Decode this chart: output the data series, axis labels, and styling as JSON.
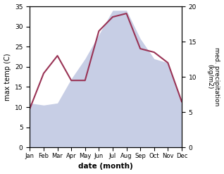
{
  "months": [
    "Jan",
    "Feb",
    "Mar",
    "Apr",
    "May",
    "Jun",
    "Jul",
    "Aug",
    "Sep",
    "Oct",
    "Nov",
    "Dec"
  ],
  "max_temp": [
    11.0,
    10.5,
    11.0,
    17.0,
    22.0,
    28.0,
    34.0,
    34.0,
    27.0,
    22.0,
    21.0,
    11.0
  ],
  "precipitation": [
    5.5,
    10.5,
    13.0,
    9.5,
    9.5,
    16.5,
    18.5,
    19.0,
    14.0,
    13.5,
    12.0,
    6.5
  ],
  "temp_color": "#993355",
  "precip_fill_color": "#aab4d8",
  "precip_fill_alpha": 0.65,
  "temp_linewidth": 1.5,
  "ylabel_left": "max temp (C)",
  "ylabel_right": "med. precipitation\n(kg/m2)",
  "xlabel": "date (month)",
  "ylim_left": [
    0,
    35
  ],
  "ylim_right": [
    0,
    20
  ],
  "yticks_left": [
    0,
    5,
    10,
    15,
    20,
    25,
    30,
    35
  ],
  "yticks_right": [
    0,
    5,
    10,
    15,
    20
  ],
  "background_color": "#ffffff"
}
